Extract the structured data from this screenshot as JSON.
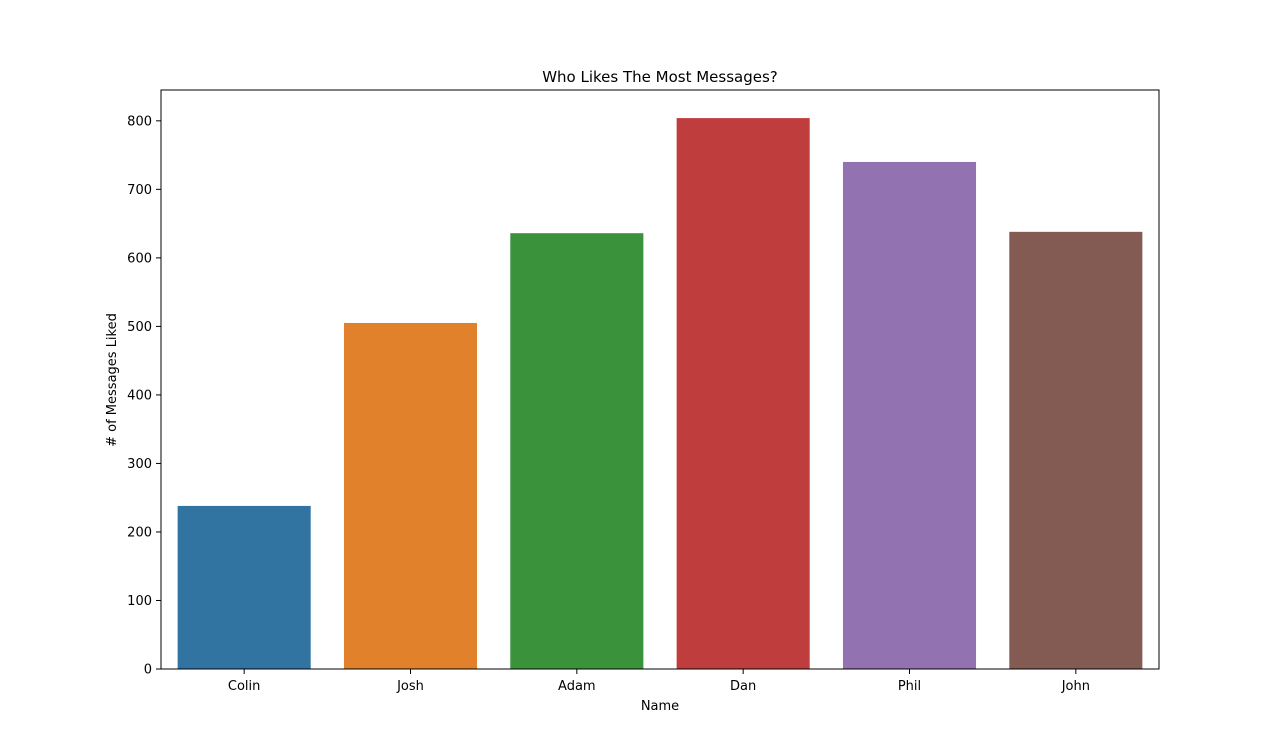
{
  "chart_data": {
    "type": "bar",
    "title": "Who Likes The Most Messages?",
    "xlabel": "Name",
    "ylabel": "# of Messages Liked",
    "categories": [
      "Colin",
      "Josh",
      "Adam",
      "Dan",
      "Phil",
      "John"
    ],
    "values": [
      238,
      505,
      636,
      804,
      740,
      638
    ],
    "colors": [
      "#3274a1",
      "#e1812c",
      "#3a923a",
      "#c03d3e",
      "#9372b2",
      "#845b53"
    ],
    "ylim": [
      0,
      845
    ],
    "yticks": [
      0,
      100,
      200,
      300,
      400,
      500,
      600,
      700,
      800
    ],
    "grid": false,
    "legend": "none"
  }
}
